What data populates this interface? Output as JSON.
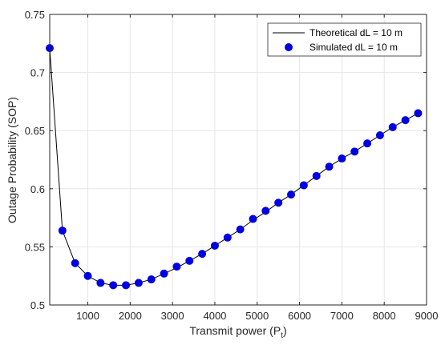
{
  "chart_data": {
    "type": "line",
    "xlabel": "Transmit power (P",
    "xlabel_sub": "t",
    "xlabel_close": ")",
    "ylabel": "Outage Probability (SOP)",
    "xlim": [
      100,
      9000
    ],
    "ylim": [
      0.5,
      0.75
    ],
    "xticks": [
      1000,
      2000,
      3000,
      4000,
      5000,
      6000,
      7000,
      8000,
      9000
    ],
    "xtick_labels": [
      "1000",
      "2000",
      "3000",
      "4000",
      "5000",
      "6000",
      "7000",
      "8000",
      "9000"
    ],
    "yticks": [
      0.5,
      0.55,
      0.6,
      0.65,
      0.7,
      0.75
    ],
    "ytick_labels": [
      "0.5",
      "0.55",
      "0.6",
      "0.65",
      "0.7",
      "0.75"
    ],
    "grid": true,
    "legend_position": "top-right",
    "series": [
      {
        "name": "Theoretical dL = 10 m",
        "style": "line",
        "color": "#000000",
        "x": [
          100,
          400,
          700,
          1000,
          1300,
          1600,
          1900,
          2200,
          2500,
          2800,
          3100,
          3400,
          3700,
          4000,
          4300,
          4600,
          4900,
          5200,
          5500,
          5800,
          6100,
          6400,
          6700,
          7000,
          7300,
          7600,
          7900,
          8200,
          8500,
          8800
        ],
        "y": [
          0.721,
          0.564,
          0.536,
          0.525,
          0.519,
          0.517,
          0.517,
          0.519,
          0.522,
          0.527,
          0.532,
          0.538,
          0.544,
          0.551,
          0.558,
          0.565,
          0.573,
          0.58,
          0.588,
          0.595,
          0.603,
          0.611,
          0.619,
          0.626,
          0.632,
          0.639,
          0.646,
          0.653,
          0.659,
          0.665
        ]
      },
      {
        "name": "Simulated dL = 10 m",
        "style": "marker",
        "color": "#0000e0",
        "x": [
          100,
          400,
          700,
          1000,
          1300,
          1600,
          1900,
          2200,
          2500,
          2800,
          3100,
          3400,
          3700,
          4000,
          4300,
          4600,
          4900,
          5200,
          5500,
          5800,
          6100,
          6400,
          6700,
          7000,
          7300,
          7600,
          7900,
          8200,
          8500,
          8800
        ],
        "y": [
          0.721,
          0.564,
          0.536,
          0.525,
          0.519,
          0.517,
          0.517,
          0.519,
          0.522,
          0.527,
          0.533,
          0.538,
          0.544,
          0.551,
          0.558,
          0.565,
          0.574,
          0.581,
          0.588,
          0.595,
          0.603,
          0.611,
          0.619,
          0.626,
          0.632,
          0.639,
          0.646,
          0.653,
          0.659,
          0.665
        ]
      }
    ]
  }
}
